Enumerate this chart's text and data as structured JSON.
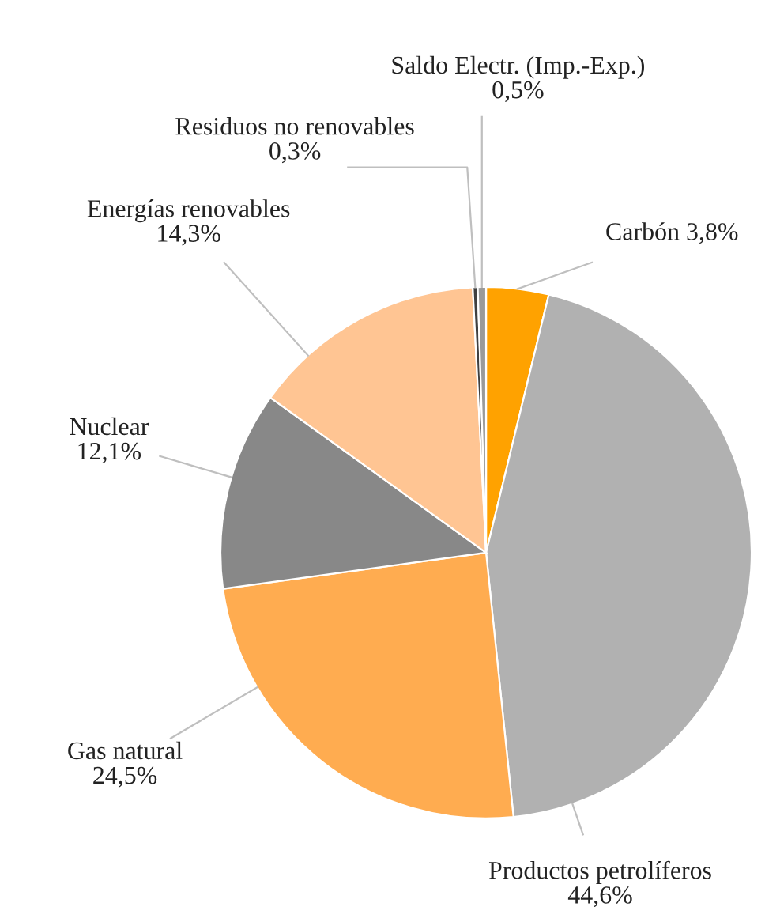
{
  "chart_data": {
    "type": "pie",
    "categories": [
      "Carbón",
      "Productos petrolíferos",
      "Gas natural",
      "Nuclear",
      "Energías renovables",
      "Residuos no renovables",
      "Saldo Electr. (Imp.-Exp.)"
    ],
    "values": [
      3.8,
      44.6,
      24.5,
      12.1,
      14.3,
      0.3,
      0.5
    ],
    "value_labels": [
      "3,8%",
      "44,6%",
      "24,5%",
      "12,1%",
      "14,3%",
      "0,3%",
      "0,5%"
    ],
    "colors": [
      "#ffa200",
      "#b1b1b1",
      "#ffac50",
      "#888888",
      "#ffc593",
      "#404040",
      "#9a9a9a"
    ]
  }
}
